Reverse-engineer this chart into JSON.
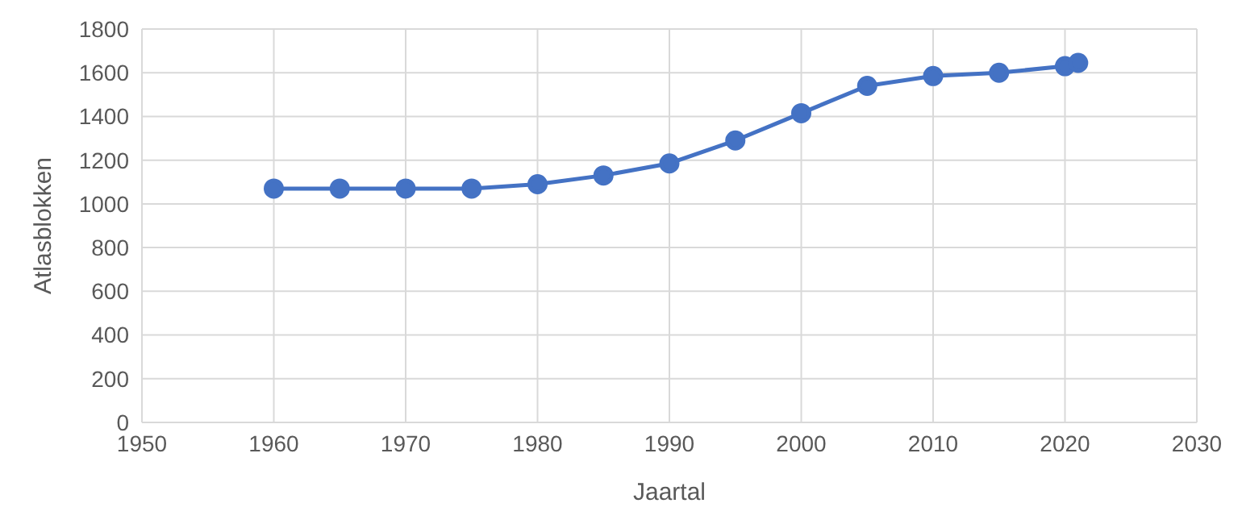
{
  "chart_data": {
    "type": "line",
    "xlabel": "Jaartal",
    "ylabel": "Atlasblokken",
    "x": [
      1960,
      1965,
      1970,
      1975,
      1980,
      1985,
      1990,
      1995,
      2000,
      2005,
      2010,
      2015,
      2020,
      2021
    ],
    "series": [
      {
        "color": "#4472c4",
        "values": [
          1070,
          1070,
          1070,
          1070,
          1090,
          1130,
          1185,
          1290,
          1415,
          1540,
          1585,
          1600,
          1630,
          1645
        ]
      }
    ],
    "xlim": [
      1950,
      2030
    ],
    "xticks": [
      1950,
      1960,
      1970,
      1980,
      1990,
      2000,
      2010,
      2020,
      2030
    ],
    "ylim": [
      0,
      1800
    ],
    "yticks": [
      0,
      200,
      400,
      600,
      800,
      1000,
      1200,
      1400,
      1600,
      1800
    ],
    "grid": true,
    "marker": "circle",
    "line_style": "solid",
    "legend": false
  }
}
